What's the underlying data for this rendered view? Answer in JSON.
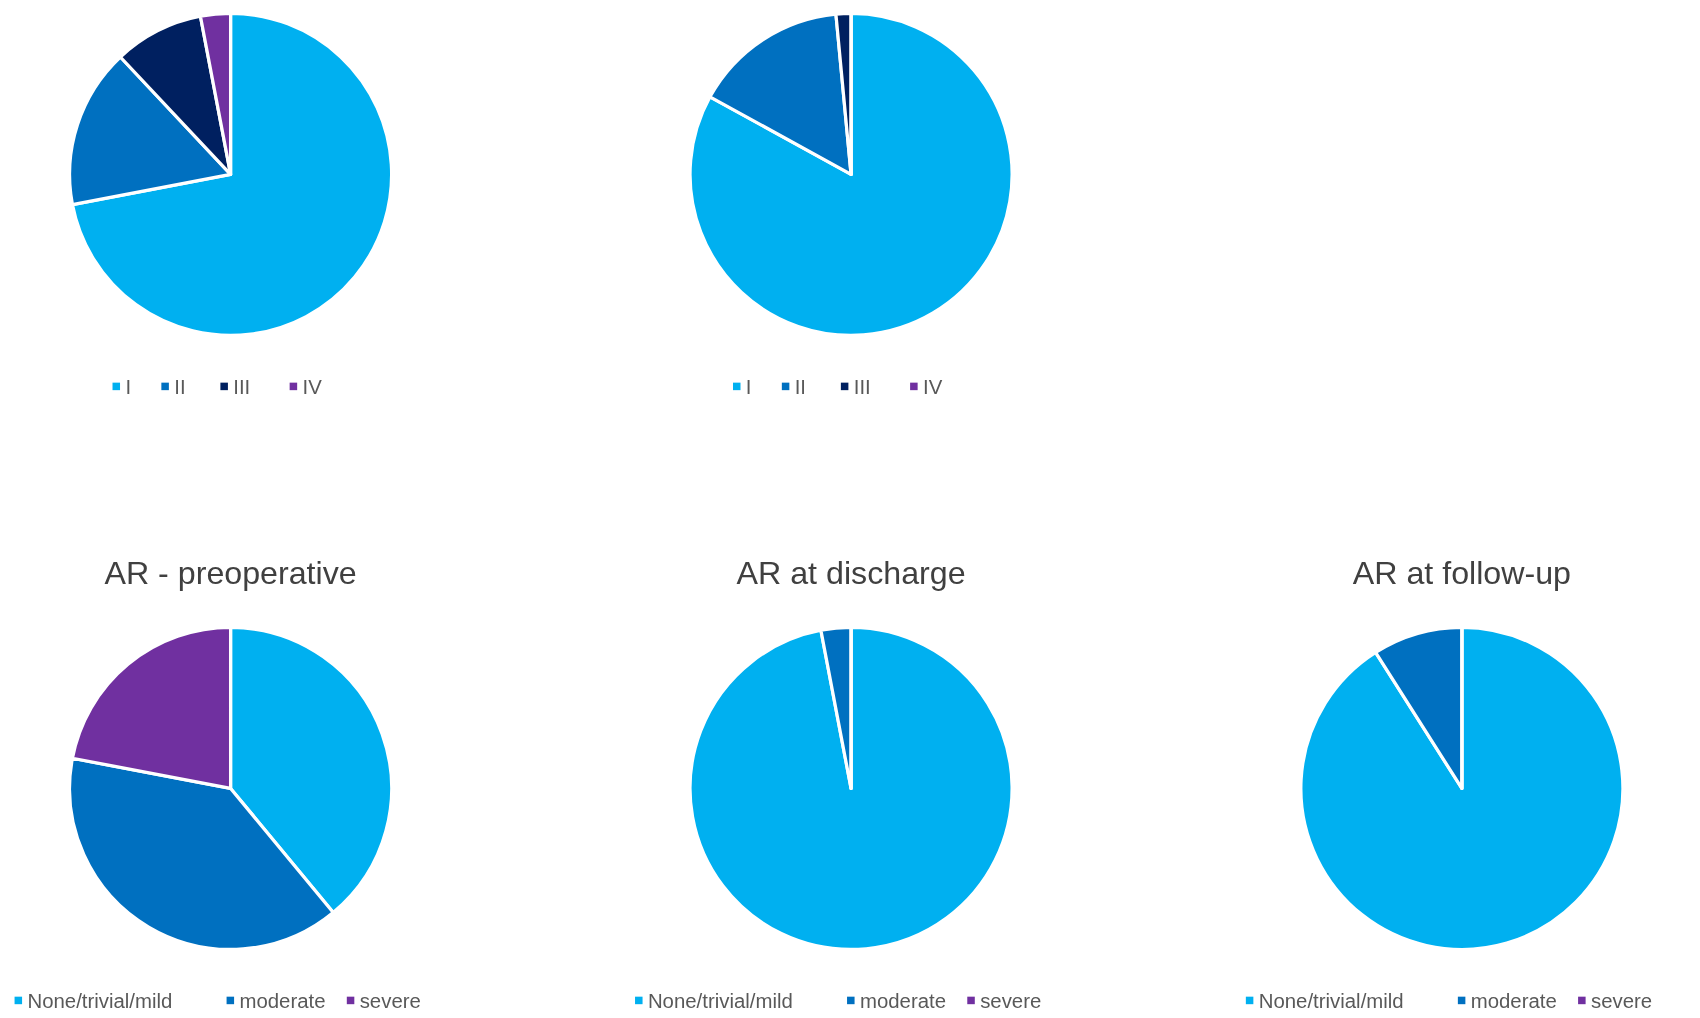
{
  "chart_data": [
    {
      "type": "pie",
      "categories": [
        "I",
        "II",
        "III",
        "IV"
      ],
      "values": [
        72,
        16,
        9,
        3
      ],
      "colors": [
        "#00b0f0",
        "#0070c0",
        "#002060",
        "#7030a0"
      ],
      "legend": "bottom"
    },
    {
      "type": "pie",
      "categories": [
        "I",
        "II",
        "III",
        "IV"
      ],
      "values": [
        83,
        15.5,
        1.5,
        0
      ],
      "colors": [
        "#00b0f0",
        "#0070c0",
        "#002060",
        "#7030a0"
      ],
      "legend": "bottom"
    },
    {
      "type": "pie",
      "title": "AR - preoperative",
      "categories": [
        "None/trivial/mild",
        "moderate",
        "severe"
      ],
      "values": [
        39,
        39,
        22
      ],
      "colors": [
        "#00b0f0",
        "#0070c0",
        "#7030a0"
      ],
      "legend": "bottom"
    },
    {
      "type": "pie",
      "title": "AR at discharge",
      "categories": [
        "None/trivial/mild",
        "moderate",
        "severe"
      ],
      "values": [
        97,
        3,
        0
      ],
      "colors": [
        "#00b0f0",
        "#0070c0",
        "#7030a0"
      ],
      "legend": "bottom"
    },
    {
      "type": "pie",
      "title": "AR at follow-up",
      "categories": [
        "None/trivial/mild",
        "moderate",
        "severe"
      ],
      "values": [
        91,
        9,
        0
      ],
      "colors": [
        "#00b0f0",
        "#0070c0",
        "#7030a0"
      ],
      "legend": "bottom"
    }
  ]
}
